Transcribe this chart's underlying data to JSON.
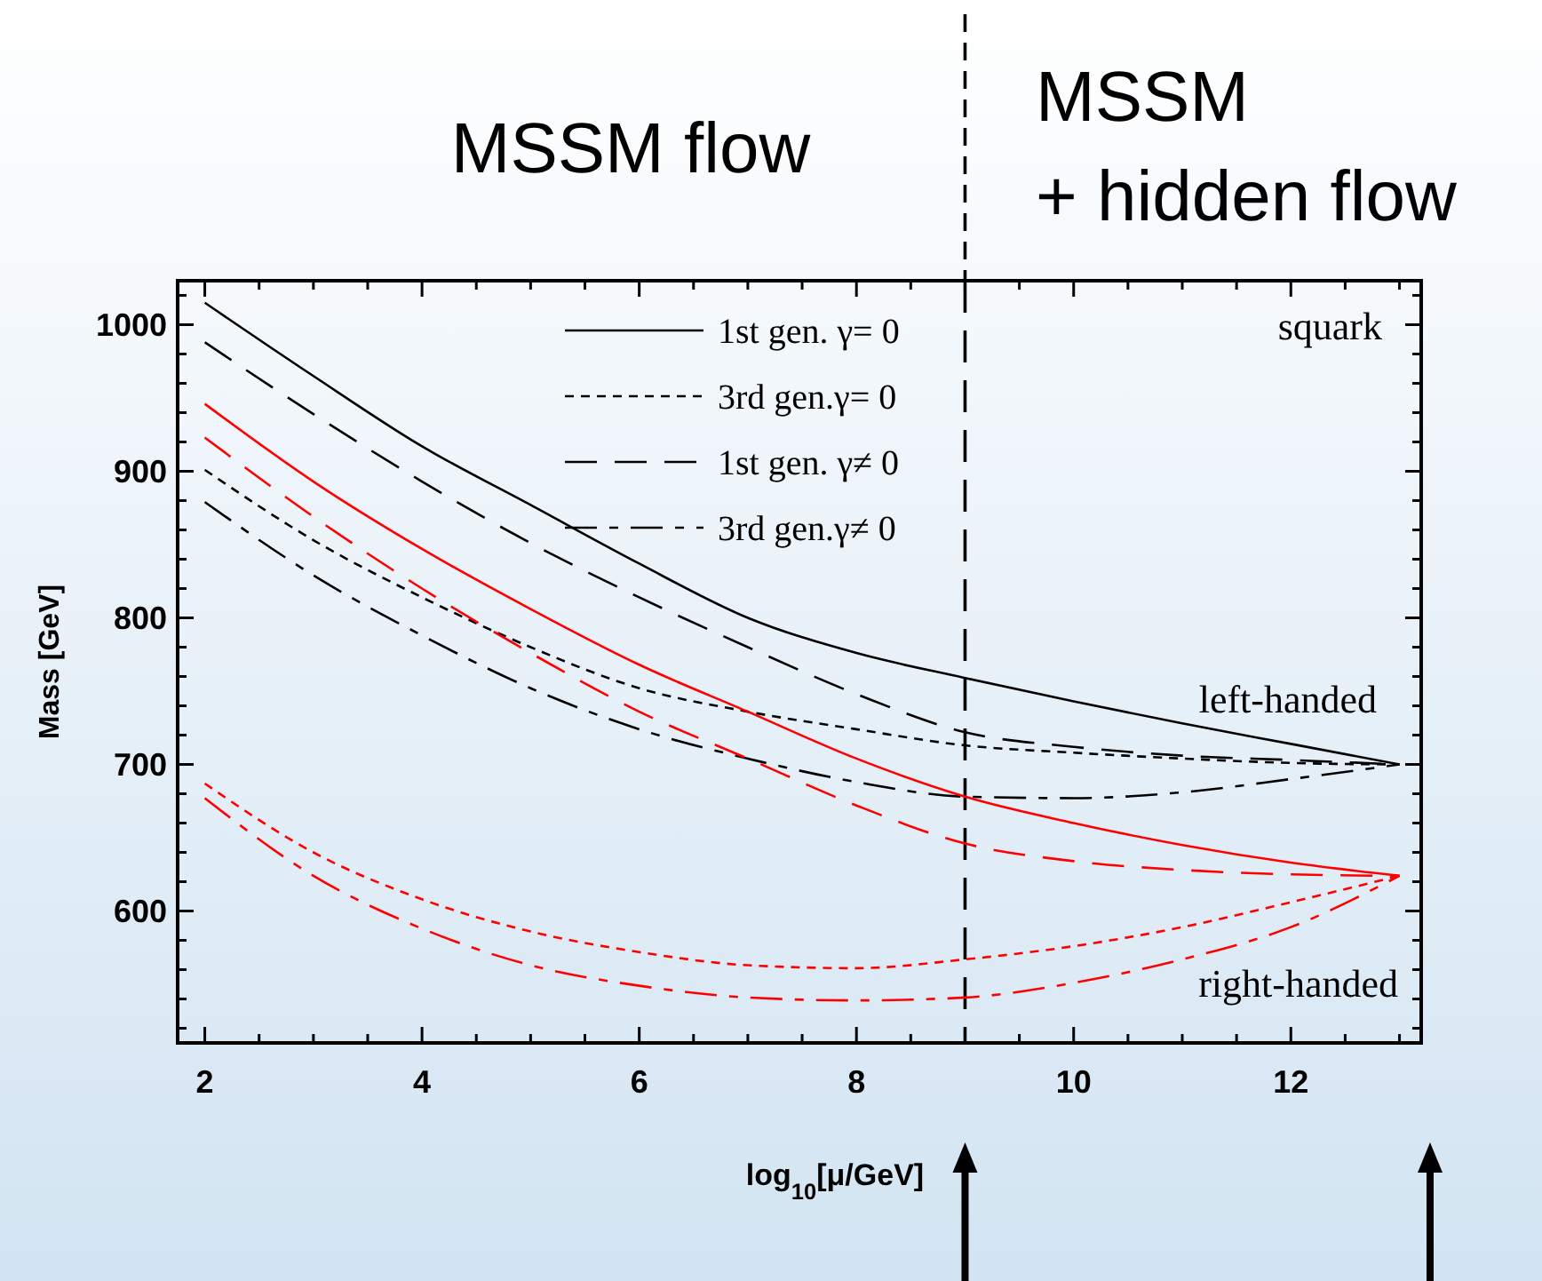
{
  "chart_data": {
    "type": "line",
    "xlabel": "log$_{10}$[μ/GeV]",
    "ylabel": "Mass [GeV]",
    "x": [
      2,
      3,
      4,
      5,
      6,
      7,
      8,
      9,
      10,
      11,
      12,
      13
    ],
    "xlim": [
      1.75,
      13.2
    ],
    "ylim": [
      510,
      1030
    ],
    "xticks": [
      2,
      {
        "value": 2.5,
        "label": null
      },
      {
        "value": 3,
        "label": null
      },
      {
        "value": 3.5,
        "label": null
      },
      4,
      {
        "value": 4.5,
        "label": null
      },
      {
        "value": 5,
        "label": null
      },
      {
        "value": 5.5,
        "label": null
      },
      6,
      {
        "value": 6.5,
        "label": null
      },
      {
        "value": 7,
        "label": null
      },
      {
        "value": 7.5,
        "label": null
      },
      8,
      {
        "value": 8.5,
        "label": null
      },
      {
        "value": 9,
        "label": null
      },
      {
        "value": 9.5,
        "label": null
      },
      10,
      {
        "value": 10.5,
        "label": null
      },
      {
        "value": 11,
        "label": null
      },
      {
        "value": 11.5,
        "label": null
      },
      12,
      {
        "value": 12.5,
        "label": null
      },
      {
        "value": 13,
        "label": null
      }
    ],
    "yticks": [
      {
        "value": 520,
        "label": null
      },
      {
        "value": 540,
        "label": null
      },
      {
        "value": 560,
        "label": null
      },
      {
        "value": 580,
        "label": null
      },
      600,
      {
        "value": 620,
        "label": null
      },
      {
        "value": 640,
        "label": null
      },
      {
        "value": 660,
        "label": null
      },
      {
        "value": 680,
        "label": null
      },
      700,
      {
        "value": 720,
        "label": null
      },
      {
        "value": 740,
        "label": null
      },
      {
        "value": 760,
        "label": null
      },
      {
        "value": 780,
        "label": null
      },
      800,
      {
        "value": 820,
        "label": null
      },
      {
        "value": 840,
        "label": null
      },
      {
        "value": 860,
        "label": null
      },
      {
        "value": 880,
        "label": null
      },
      900,
      {
        "value": 920,
        "label": null
      },
      {
        "value": 940,
        "label": null
      },
      {
        "value": 960,
        "label": null
      },
      {
        "value": 980,
        "label": null
      },
      1000,
      {
        "value": 1020,
        "label": null
      }
    ],
    "grid": false,
    "legend": "top",
    "series": [
      {
        "name": "1st gen. γ= 0",
        "color": "#000000",
        "line_style": "solid",
        "values": [
          1015,
          965,
          917,
          877,
          837,
          800,
          776,
          759,
          743,
          728,
          714,
          700
        ]
      },
      {
        "name": "3rd gen.γ= 0",
        "color": "#000000",
        "line_style": "dotted",
        "values": [
          901,
          853,
          814,
          780,
          752,
          736,
          724,
          713,
          708,
          704,
          701,
          700
        ]
      },
      {
        "name": "1st gen. γ≠ 0",
        "color": "#000000",
        "line_style": "dashed",
        "values": [
          988,
          939,
          893,
          851,
          814,
          780,
          748,
          722,
          712,
          706,
          703,
          700
        ]
      },
      {
        "name": "3rd gen.γ≠ 0",
        "color": "#000000",
        "line_style": "dashdot",
        "values": [
          879,
          829,
          788,
          752,
          724,
          704,
          688,
          678,
          677,
          681,
          690,
          700
        ]
      },
      {
        "color": "#ff0000",
        "line_style": "solid",
        "values": [
          946,
          893,
          847,
          806,
          768,
          736,
          704,
          678,
          660,
          645,
          633,
          624
        ]
      },
      {
        "color": "#ff0000",
        "line_style": "dotted",
        "values": [
          687,
          640,
          608,
          586,
          572,
          563,
          561,
          567,
          576,
          589,
          606,
          624
        ]
      },
      {
        "color": "#ff0000",
        "line_style": "dashed",
        "values": [
          923,
          869,
          820,
          776,
          736,
          704,
          672,
          646,
          634,
          628,
          625,
          624
        ]
      },
      {
        "color": "#ff0000",
        "line_style": "dashdot",
        "values": [
          677,
          624,
          588,
          563,
          549,
          541,
          539,
          541,
          551,
          567,
          589,
          624
        ]
      }
    ],
    "ref_lines": [
      {
        "axis": "x",
        "value": 9,
        "color": "#000000",
        "line_style": "dashed"
      }
    ],
    "annotations": [
      "MSSM flow",
      "MSSM\n+ hidden flow",
      "squark",
      "left-handed",
      "right-handed"
    ]
  }
}
